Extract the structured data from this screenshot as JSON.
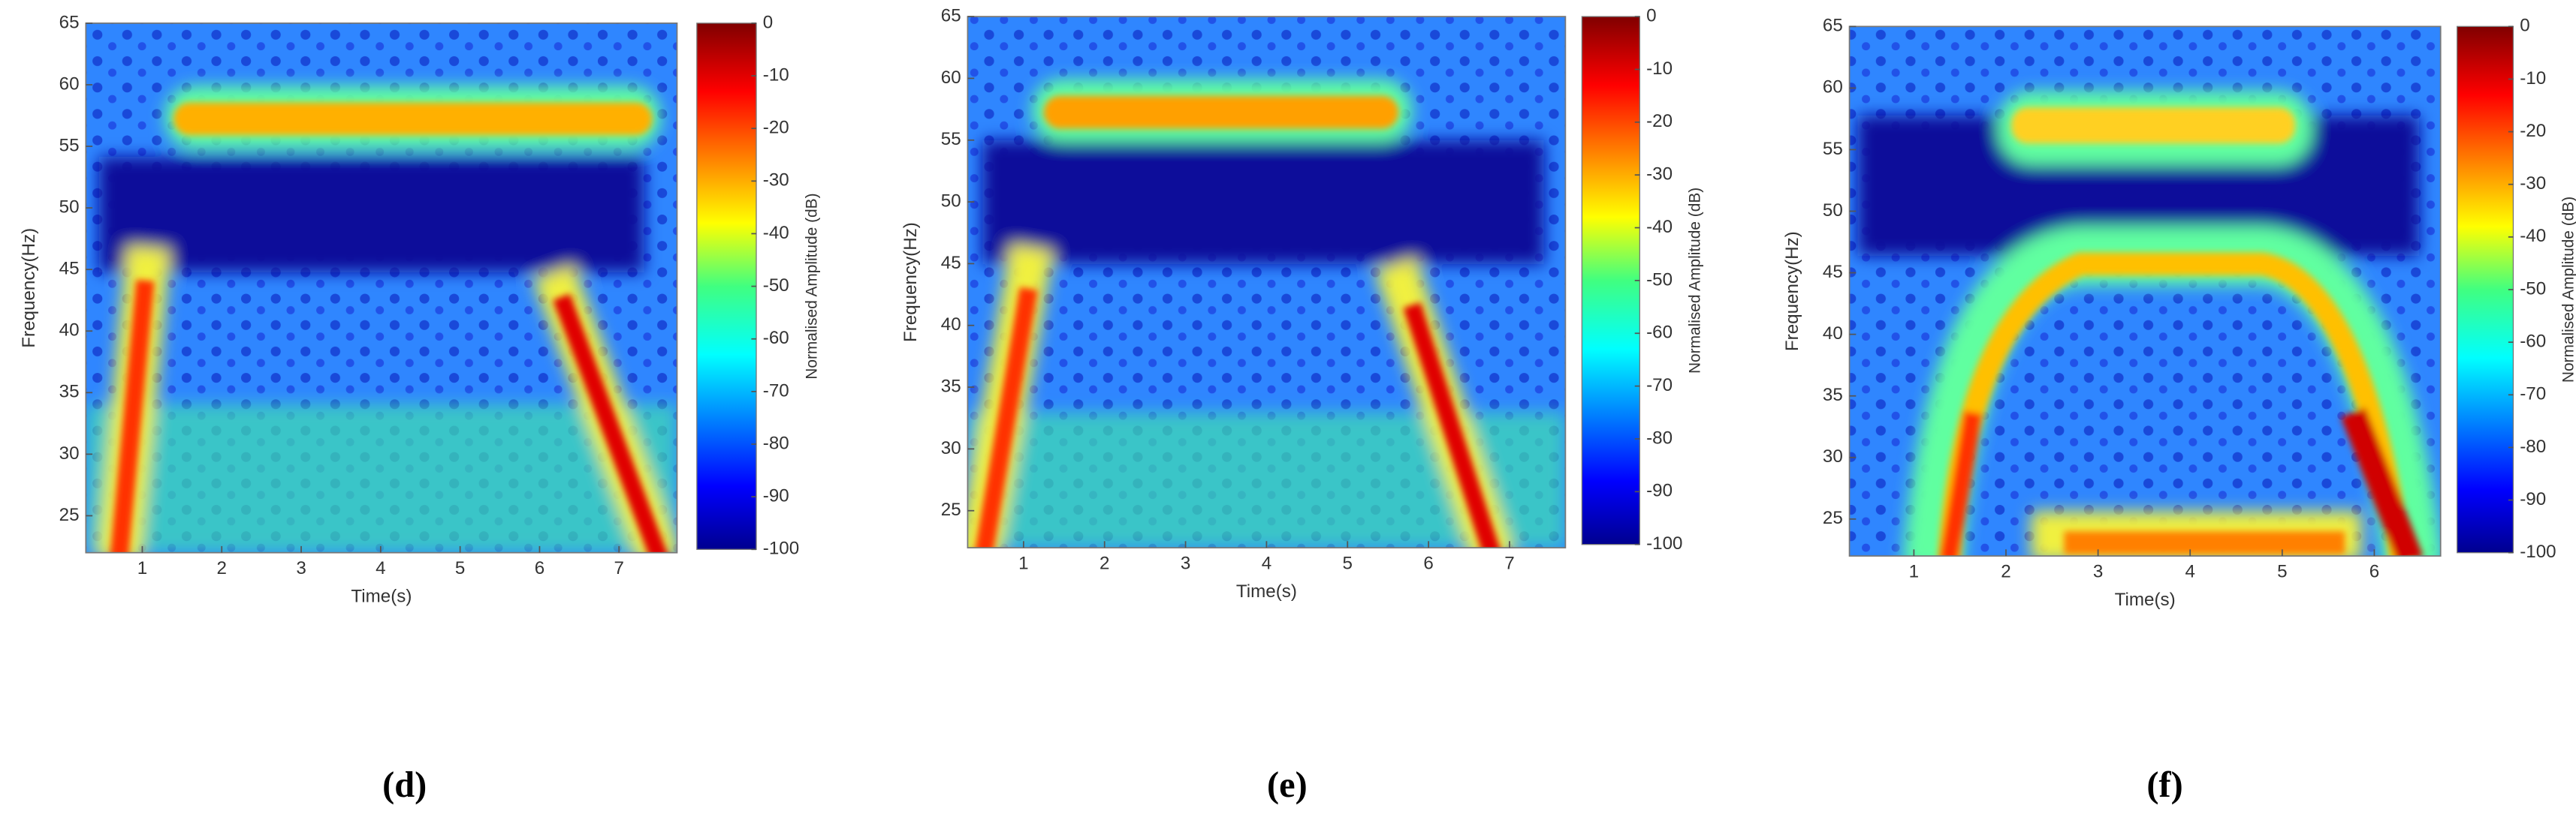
{
  "chart_data": [
    {
      "type": "heatmap",
      "xlabel": "Time(s)",
      "ylabel": "Frequency(Hz)",
      "xlim": [
        0.29,
        7.73
      ],
      "ylim": [
        22,
        65
      ],
      "xticks": [
        1,
        2,
        3,
        4,
        5,
        6,
        7
      ],
      "yticks": [
        25,
        30,
        35,
        40,
        45,
        50,
        55,
        60,
        65
      ],
      "colorbar_label": "Normalised Amplitude (dB)",
      "clim": [
        -100,
        0
      ],
      "cticks": [
        0,
        -10,
        -20,
        -30,
        -40,
        -50,
        -60,
        -70,
        -80,
        -90,
        -100
      ],
      "caption": "(d)"
    },
    {
      "type": "heatmap",
      "xlabel": "Time(s)",
      "ylabel": "Frequency(Hz)",
      "xlim": [
        0.31,
        7.69
      ],
      "ylim": [
        22,
        65
      ],
      "xticks": [
        1,
        2,
        3,
        4,
        5,
        6,
        7
      ],
      "yticks": [
        25,
        30,
        35,
        40,
        45,
        50,
        55,
        60,
        65
      ],
      "colorbar_label": "Normalised Amplitude (dB)",
      "clim": [
        -100,
        0
      ],
      "cticks": [
        0,
        -10,
        -20,
        -30,
        -40,
        -50,
        -60,
        -70,
        -80,
        -90,
        -100
      ],
      "caption": "(e)"
    },
    {
      "type": "heatmap",
      "xlabel": "Time(s)",
      "ylabel": "Frequency(Hz)",
      "xlim": [
        0.3,
        6.72
      ],
      "ylim": [
        22,
        65
      ],
      "xticks": [
        1,
        2,
        3,
        4,
        5,
        6
      ],
      "yticks": [
        25,
        30,
        35,
        40,
        45,
        50,
        55,
        60,
        65
      ],
      "colorbar_label": "Normalised Amplitude (dB)",
      "clim": [
        -100,
        0
      ],
      "cticks": [
        0,
        -10,
        -20,
        -30,
        -40,
        -50,
        -60,
        -70,
        -80,
        -90,
        -100
      ],
      "caption": "(f)"
    }
  ]
}
